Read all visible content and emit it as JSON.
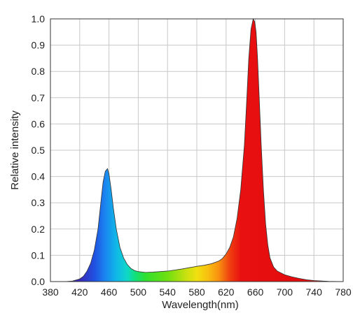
{
  "chart_data": {
    "type": "area",
    "title": "",
    "xlabel": "Wavelength(nm)",
    "ylabel": "Relative intensity",
    "xlim": [
      380,
      780
    ],
    "ylim": [
      0,
      1.0
    ],
    "grid": true,
    "x_ticks": [
      "380",
      "420",
      "460",
      "500",
      "540",
      "580",
      "620",
      "660",
      "700",
      "740",
      "780"
    ],
    "y_ticks": [
      "0.0",
      "0.1",
      "0.2",
      "0.3",
      "0.4",
      "0.5",
      "0.6",
      "0.7",
      "0.8",
      "0.9",
      "1.0"
    ],
    "fill": "visible-spectrum gradient (violet to red)",
    "series": [
      {
        "x": [
          380,
          400,
          410,
          420,
          425,
          430,
          435,
          440,
          445,
          450,
          452,
          455,
          458,
          460,
          463,
          466,
          470,
          475,
          480,
          485,
          490,
          495,
          500,
          510,
          520,
          530,
          540,
          550,
          560,
          570,
          580,
          590,
          600,
          610,
          615,
          620,
          625,
          630,
          635,
          640,
          645,
          648,
          651,
          654,
          657,
          659,
          661,
          663,
          665,
          668,
          671,
          674,
          677,
          680,
          685,
          690,
          700,
          710,
          720,
          730,
          740,
          760,
          780
        ],
        "y": [
          0.0,
          0.0,
          0.002,
          0.01,
          0.02,
          0.04,
          0.07,
          0.12,
          0.2,
          0.33,
          0.38,
          0.42,
          0.43,
          0.41,
          0.35,
          0.28,
          0.2,
          0.13,
          0.09,
          0.065,
          0.05,
          0.042,
          0.038,
          0.035,
          0.036,
          0.038,
          0.04,
          0.044,
          0.048,
          0.053,
          0.058,
          0.062,
          0.068,
          0.078,
          0.088,
          0.105,
          0.13,
          0.17,
          0.24,
          0.35,
          0.52,
          0.68,
          0.85,
          0.96,
          1.0,
          0.99,
          0.95,
          0.85,
          0.72,
          0.52,
          0.35,
          0.22,
          0.14,
          0.09,
          0.055,
          0.04,
          0.026,
          0.018,
          0.012,
          0.007,
          0.004,
          0.001,
          0.0
        ]
      }
    ]
  }
}
